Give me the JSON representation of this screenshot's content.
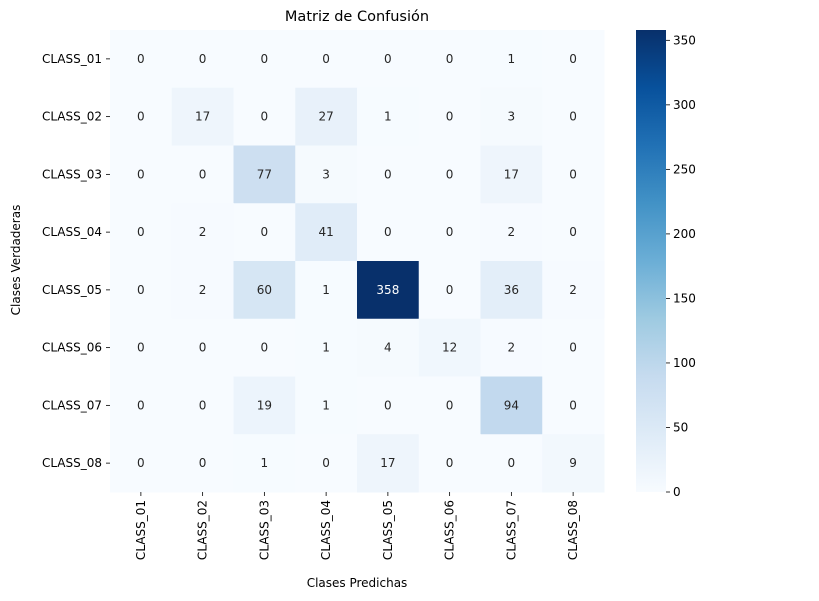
{
  "chart_data": {
    "type": "heatmap",
    "title": "Matriz de Confusión",
    "xlabel": "Clases Predichas",
    "ylabel": "Clases Verdaderas",
    "x_categories": [
      "CLASS_01",
      "CLASS_02",
      "CLASS_03",
      "CLASS_04",
      "CLASS_05",
      "CLASS_06",
      "CLASS_07",
      "CLASS_08"
    ],
    "y_categories": [
      "CLASS_01",
      "CLASS_02",
      "CLASS_03",
      "CLASS_04",
      "CLASS_05",
      "CLASS_06",
      "CLASS_07",
      "CLASS_08"
    ],
    "matrix": [
      [
        0,
        0,
        0,
        0,
        0,
        0,
        1,
        0
      ],
      [
        0,
        17,
        0,
        27,
        1,
        0,
        3,
        0
      ],
      [
        0,
        0,
        77,
        3,
        0,
        0,
        17,
        0
      ],
      [
        0,
        2,
        0,
        41,
        0,
        0,
        2,
        0
      ],
      [
        0,
        2,
        60,
        1,
        358,
        0,
        36,
        2
      ],
      [
        0,
        0,
        0,
        1,
        4,
        12,
        2,
        0
      ],
      [
        0,
        0,
        19,
        1,
        0,
        0,
        94,
        0
      ],
      [
        0,
        0,
        1,
        0,
        17,
        0,
        0,
        9
      ]
    ],
    "colormap": "Blues",
    "colorbar": {
      "min": 0,
      "max": 358,
      "ticks": [
        0,
        50,
        100,
        150,
        200,
        250,
        300,
        350
      ]
    },
    "grid": false,
    "annotations": "cell values"
  }
}
